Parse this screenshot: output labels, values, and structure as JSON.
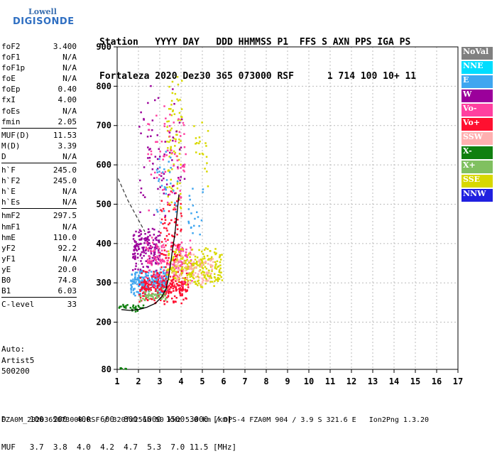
{
  "logo": {
    "line1": "Lowell",
    "line2": "DIGISONDE"
  },
  "header": {
    "line1": "Station   YYYY DAY   DDD HHMMSS P1  FFS S AXN PPS IGA PS",
    "line2": "Fortaleza 2020 Dez30 365 073000 RSF      1 714 100 10+ 11"
  },
  "params": [
    {
      "k": "foF2",
      "v": "3.400"
    },
    {
      "k": "foF1",
      "v": "N/A"
    },
    {
      "k": "foF1p",
      "v": "N/A"
    },
    {
      "k": "foE",
      "v": "N/A"
    },
    {
      "k": "foEp",
      "v": "0.40"
    },
    {
      "k": "fxI",
      "v": "4.00"
    },
    {
      "k": "foEs",
      "v": "N/A"
    },
    {
      "k": "fmin",
      "v": "2.05"
    },
    {
      "sep": true
    },
    {
      "k": "MUF(D)",
      "v": "11.53"
    },
    {
      "k": "M(D)",
      "v": "3.39"
    },
    {
      "k": "D",
      "v": "N/A"
    },
    {
      "sep": true
    },
    {
      "k": "h`F",
      "v": "245.0"
    },
    {
      "k": "h`F2",
      "v": "245.0"
    },
    {
      "k": "h`E",
      "v": "N/A"
    },
    {
      "k": "h`Es",
      "v": "N/A"
    },
    {
      "sep": true
    },
    {
      "k": "hmF2",
      "v": "297.5"
    },
    {
      "k": "hmF1",
      "v": "N/A"
    },
    {
      "k": "hmE",
      "v": "110.0"
    },
    {
      "k": "yF2",
      "v": "92.2"
    },
    {
      "k": "yF1",
      "v": "N/A"
    },
    {
      "k": "yE",
      "v": "20.0"
    },
    {
      "k": "B0",
      "v": "74.8"
    },
    {
      "k": "B1",
      "v": "6.03"
    },
    {
      "sep": true
    },
    {
      "k": "C-level",
      "v": "33"
    }
  ],
  "auto": {
    "line1": "Auto:",
    "line2": "Artist5",
    "line3": "500200"
  },
  "muf_table": {
    "line1": "D     100  200  400  600  800 1000 1500 3000 [km]",
    "line2": "MUF   3.7  3.8  4.0  4.2  4.7  5.3  7.0 11.5 [MHz]"
  },
  "footer": "FZA0M_2020365073000.RSF / 320fx256h 50 kHz 5.0 km / DPS-4 FZA0M 904 / 3.9 S 321.6 E   Ion2Png 1.3.20",
  "legend": [
    {
      "label": "NoVal",
      "color": "#808080"
    },
    {
      "label": "NNE",
      "color": "#00ddff"
    },
    {
      "label": "E",
      "color": "#3fa6f0"
    },
    {
      "label": "W",
      "color": "#9b009b"
    },
    {
      "label": "Vo-",
      "color": "#ff40a0"
    },
    {
      "label": "Vo+",
      "color": "#ff1030"
    },
    {
      "label": "SSW",
      "color": "#ffb0b0"
    },
    {
      "label": "X-",
      "color": "#108010"
    },
    {
      "label": "X+",
      "color": "#80c060"
    },
    {
      "label": "SSE",
      "color": "#d8d800"
    },
    {
      "label": "NNW",
      "color": "#2020e0"
    }
  ],
  "chart_data": {
    "type": "scatter",
    "x_ticks": [
      "1",
      "2",
      "3",
      "4",
      "5",
      "6",
      "7",
      "8",
      "9",
      "10",
      "11",
      "12",
      "13",
      "14",
      "15",
      "16",
      "17"
    ],
    "y_ticks": [
      "80",
      "200",
      "300",
      "400",
      "500",
      "600",
      "700",
      "800",
      "900"
    ],
    "xlim": [
      1,
      17
    ],
    "ylim": [
      80,
      900
    ],
    "grid": true,
    "trace_dashed": {
      "x": [
        1.05,
        1.5,
        2.0,
        2.3
      ],
      "y": [
        565,
        510,
        460,
        430
      ]
    },
    "trace_profile": {
      "x": [
        1.2,
        1.6,
        2.0,
        2.4,
        2.8,
        3.1,
        3.3,
        3.4,
        3.5,
        3.6,
        3.7,
        3.8,
        3.9
      ],
      "y": [
        232,
        230,
        232,
        238,
        248,
        265,
        285,
        310,
        345,
        385,
        420,
        470,
        525
      ]
    },
    "clusters": [
      {
        "color": "#3fa6f0",
        "x": [
          1.6,
          3.3
        ],
        "y": [
          265,
          345
        ],
        "n": 260
      },
      {
        "color": "#9b009b",
        "x": [
          1.7,
          3.0
        ],
        "y": [
          330,
          450
        ],
        "n": 160
      },
      {
        "color": "#ff1030",
        "x": [
          2.0,
          4.3
        ],
        "y": [
          245,
          340
        ],
        "n": 260
      },
      {
        "color": "#ff40a0",
        "x": [
          2.3,
          4.5
        ],
        "y": [
          290,
          420
        ],
        "n": 150
      },
      {
        "color": "#d8d800",
        "x": [
          3.3,
          5.9
        ],
        "y": [
          285,
          395
        ],
        "n": 260
      },
      {
        "color": "#ffb0b0",
        "x": [
          3.5,
          5.5
        ],
        "y": [
          290,
          380
        ],
        "n": 90
      },
      {
        "color": "#108010",
        "x": [
          1.0,
          2.2
        ],
        "y": [
          228,
          250
        ],
        "n": 30
      },
      {
        "color": "#80c060",
        "x": [
          2.0,
          3.3
        ],
        "y": [
          250,
          290
        ],
        "n": 50
      },
      {
        "color": "#ff1030",
        "x": [
          3.0,
          4.0
        ],
        "y": [
          320,
          560
        ],
        "n": 80
      },
      {
        "color": "#d8d800",
        "x": [
          3.3,
          4.0
        ],
        "y": [
          450,
          870
        ],
        "n": 80
      },
      {
        "color": "#9b009b",
        "x": [
          2.0,
          4.2
        ],
        "y": [
          440,
          830
        ],
        "n": 70
      },
      {
        "color": "#ff40a0",
        "x": [
          2.4,
          4.2
        ],
        "y": [
          450,
          800
        ],
        "n": 70
      },
      {
        "color": "#3fa6f0",
        "x": [
          2.8,
          3.8
        ],
        "y": [
          430,
          660
        ],
        "n": 30
      },
      {
        "color": "#3fa6f0",
        "x": [
          4.3,
          5.0
        ],
        "y": [
          395,
          560
        ],
        "n": 20
      },
      {
        "color": "#d8d800",
        "x": [
          4.5,
          5.3
        ],
        "y": [
          540,
          720
        ],
        "n": 20
      },
      {
        "color": "#108010",
        "x": [
          1.1,
          1.4
        ],
        "y": [
          81,
          86
        ],
        "n": 6
      }
    ]
  }
}
